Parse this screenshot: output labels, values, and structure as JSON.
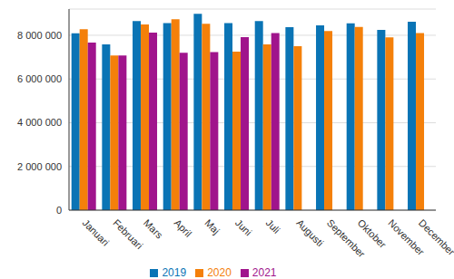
{
  "chart_data": {
    "type": "bar",
    "categories": [
      "Januari",
      "Februari",
      "Mars",
      "April",
      "Maj",
      "Juni",
      "Juli",
      "Augusti",
      "September",
      "Oktober",
      "November",
      "December"
    ],
    "series": [
      {
        "name": "2019",
        "color": "#0a74b5",
        "values": [
          8090000,
          7580000,
          8650000,
          8560000,
          8980000,
          8560000,
          8650000,
          8370000,
          8450000,
          8550000,
          8250000,
          8620000
        ]
      },
      {
        "name": "2020",
        "color": "#f4800a",
        "values": [
          8280000,
          7080000,
          8500000,
          8730000,
          8530000,
          7250000,
          7580000,
          7500000,
          8200000,
          8380000,
          7900000,
          8100000
        ]
      },
      {
        "name": "2021",
        "color": "#a0148c",
        "values": [
          7670000,
          7080000,
          8120000,
          7200000,
          7230000,
          7920000,
          8100000,
          null,
          null,
          null,
          null,
          null
        ]
      }
    ],
    "ylim": [
      0,
      9200000
    ],
    "yticks": [
      0,
      {
        "value": 2000000,
        "label": "2 000 000"
      },
      {
        "value": 4000000,
        "label": "4 000 000"
      },
      {
        "value": 6000000,
        "label": "6 000 000"
      },
      {
        "value": 8000000,
        "label": "8 000 000"
      }
    ],
    "grid": true,
    "legend": "bottom"
  }
}
